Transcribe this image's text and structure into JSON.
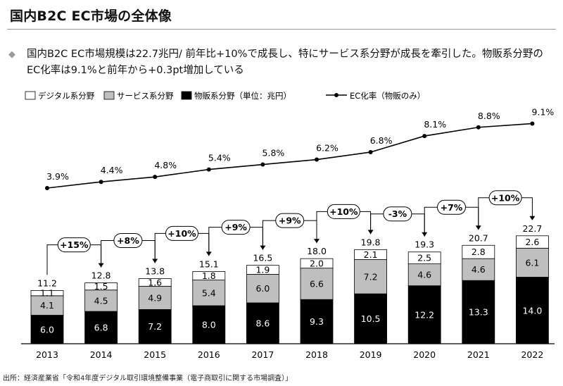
{
  "page": {
    "title": "国内B2C EC市場の全体像",
    "summary_bullet": "◆",
    "summary": "国内B2C EC市場規模は22.7兆円/ 前年比+10%で成長し、特にサービス系分野が成長を牽引した。物販系分野のEC化率は9.1%と前年から+0.3pt増加している",
    "source": "出所：経済産業省「令和4年度デジタル取引環境整備事業（電子商取引に関する市場調査）」"
  },
  "chart_data": {
    "type": "bar",
    "stacked": true,
    "categories": [
      "2013",
      "2014",
      "2015",
      "2016",
      "2017",
      "2018",
      "2019",
      "2020",
      "2021",
      "2022"
    ],
    "series": [
      {
        "name": "物販系分野（単位：兆円）",
        "color": "#000000",
        "label_color": "#ffffff",
        "values": [
          6.0,
          6.8,
          7.2,
          8.0,
          8.6,
          9.3,
          10.5,
          12.2,
          13.3,
          14.0
        ]
      },
      {
        "name": "サービス系分野",
        "color": "#bfbfbf",
        "label_color": "#000000",
        "values": [
          4.1,
          4.5,
          4.9,
          5.4,
          6.0,
          6.6,
          7.2,
          4.6,
          4.6,
          6.1
        ]
      },
      {
        "name": "デジタル系分野",
        "color": "#ffffff",
        "label_color": "#000000",
        "values": [
          1.1,
          1.5,
          1.6,
          1.8,
          1.9,
          2.0,
          2.1,
          2.5,
          2.8,
          2.6
        ]
      }
    ],
    "totals": [
      11.2,
      12.8,
      13.8,
      15.1,
      16.5,
      18.0,
      19.8,
      19.3,
      20.7,
      22.7
    ],
    "growth_labels": [
      "+15%",
      "+8%",
      "+10%",
      "+9%",
      "+9%",
      "+10%",
      "-3%",
      "+7%",
      "+10%"
    ],
    "line_series": {
      "name": "EC化率（物販のみ）",
      "values": [
        3.9,
        4.4,
        4.8,
        5.4,
        5.8,
        6.2,
        6.8,
        8.1,
        8.8,
        9.1
      ],
      "labels": [
        "3.9%",
        "4.4%",
        "4.8%",
        "5.4%",
        "5.8%",
        "6.2%",
        "6.8%",
        "8.1%",
        "8.8%",
        "9.1%"
      ]
    },
    "colors": {
      "axis": "#000000",
      "growth_box_border": "#000000",
      "line": "#000000"
    }
  }
}
